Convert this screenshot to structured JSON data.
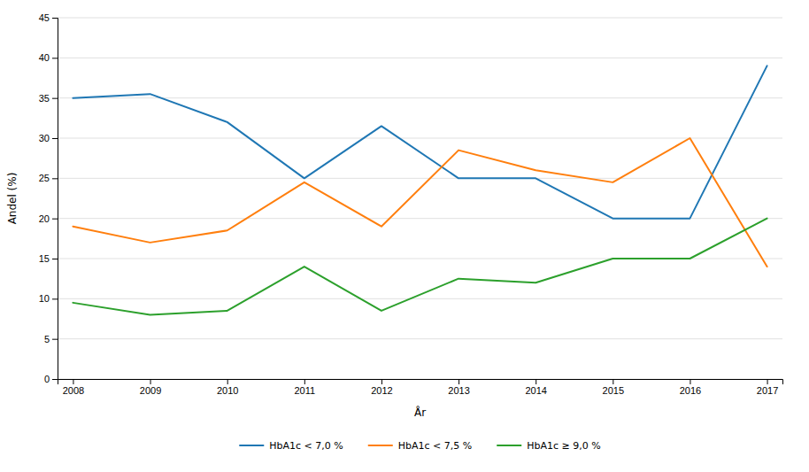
{
  "chart_data": {
    "type": "line",
    "x": [
      2008,
      2009,
      2010,
      2011,
      2012,
      2013,
      2014,
      2015,
      2016,
      2017
    ],
    "series": [
      {
        "name": "HbA1c < 7,0 %",
        "values": [
          35,
          35.5,
          32,
          25,
          31.5,
          25,
          25,
          20,
          20,
          39
        ]
      },
      {
        "name": "HbA1c < 7,5 %",
        "values": [
          19,
          17,
          18.5,
          24.5,
          19,
          28.5,
          26,
          24.5,
          30,
          14
        ]
      },
      {
        "name": "HbA1c ≥ 9,0 %",
        "values": [
          9.5,
          8,
          8.5,
          14,
          8.5,
          12.5,
          12,
          15,
          15,
          20
        ]
      }
    ],
    "xlabel": "År",
    "ylabel": "Andel (%)",
    "xlim": [
      2007.8,
      2017.2
    ],
    "xticks": [
      2008,
      2009,
      2010,
      2011,
      2012,
      2013,
      2014,
      2015,
      2016,
      2017
    ],
    "ylim": [
      0,
      45
    ],
    "yticks": [
      0,
      5,
      10,
      15,
      20,
      25,
      30,
      35,
      40,
      45
    ],
    "grid": true,
    "legend": "bottom"
  }
}
